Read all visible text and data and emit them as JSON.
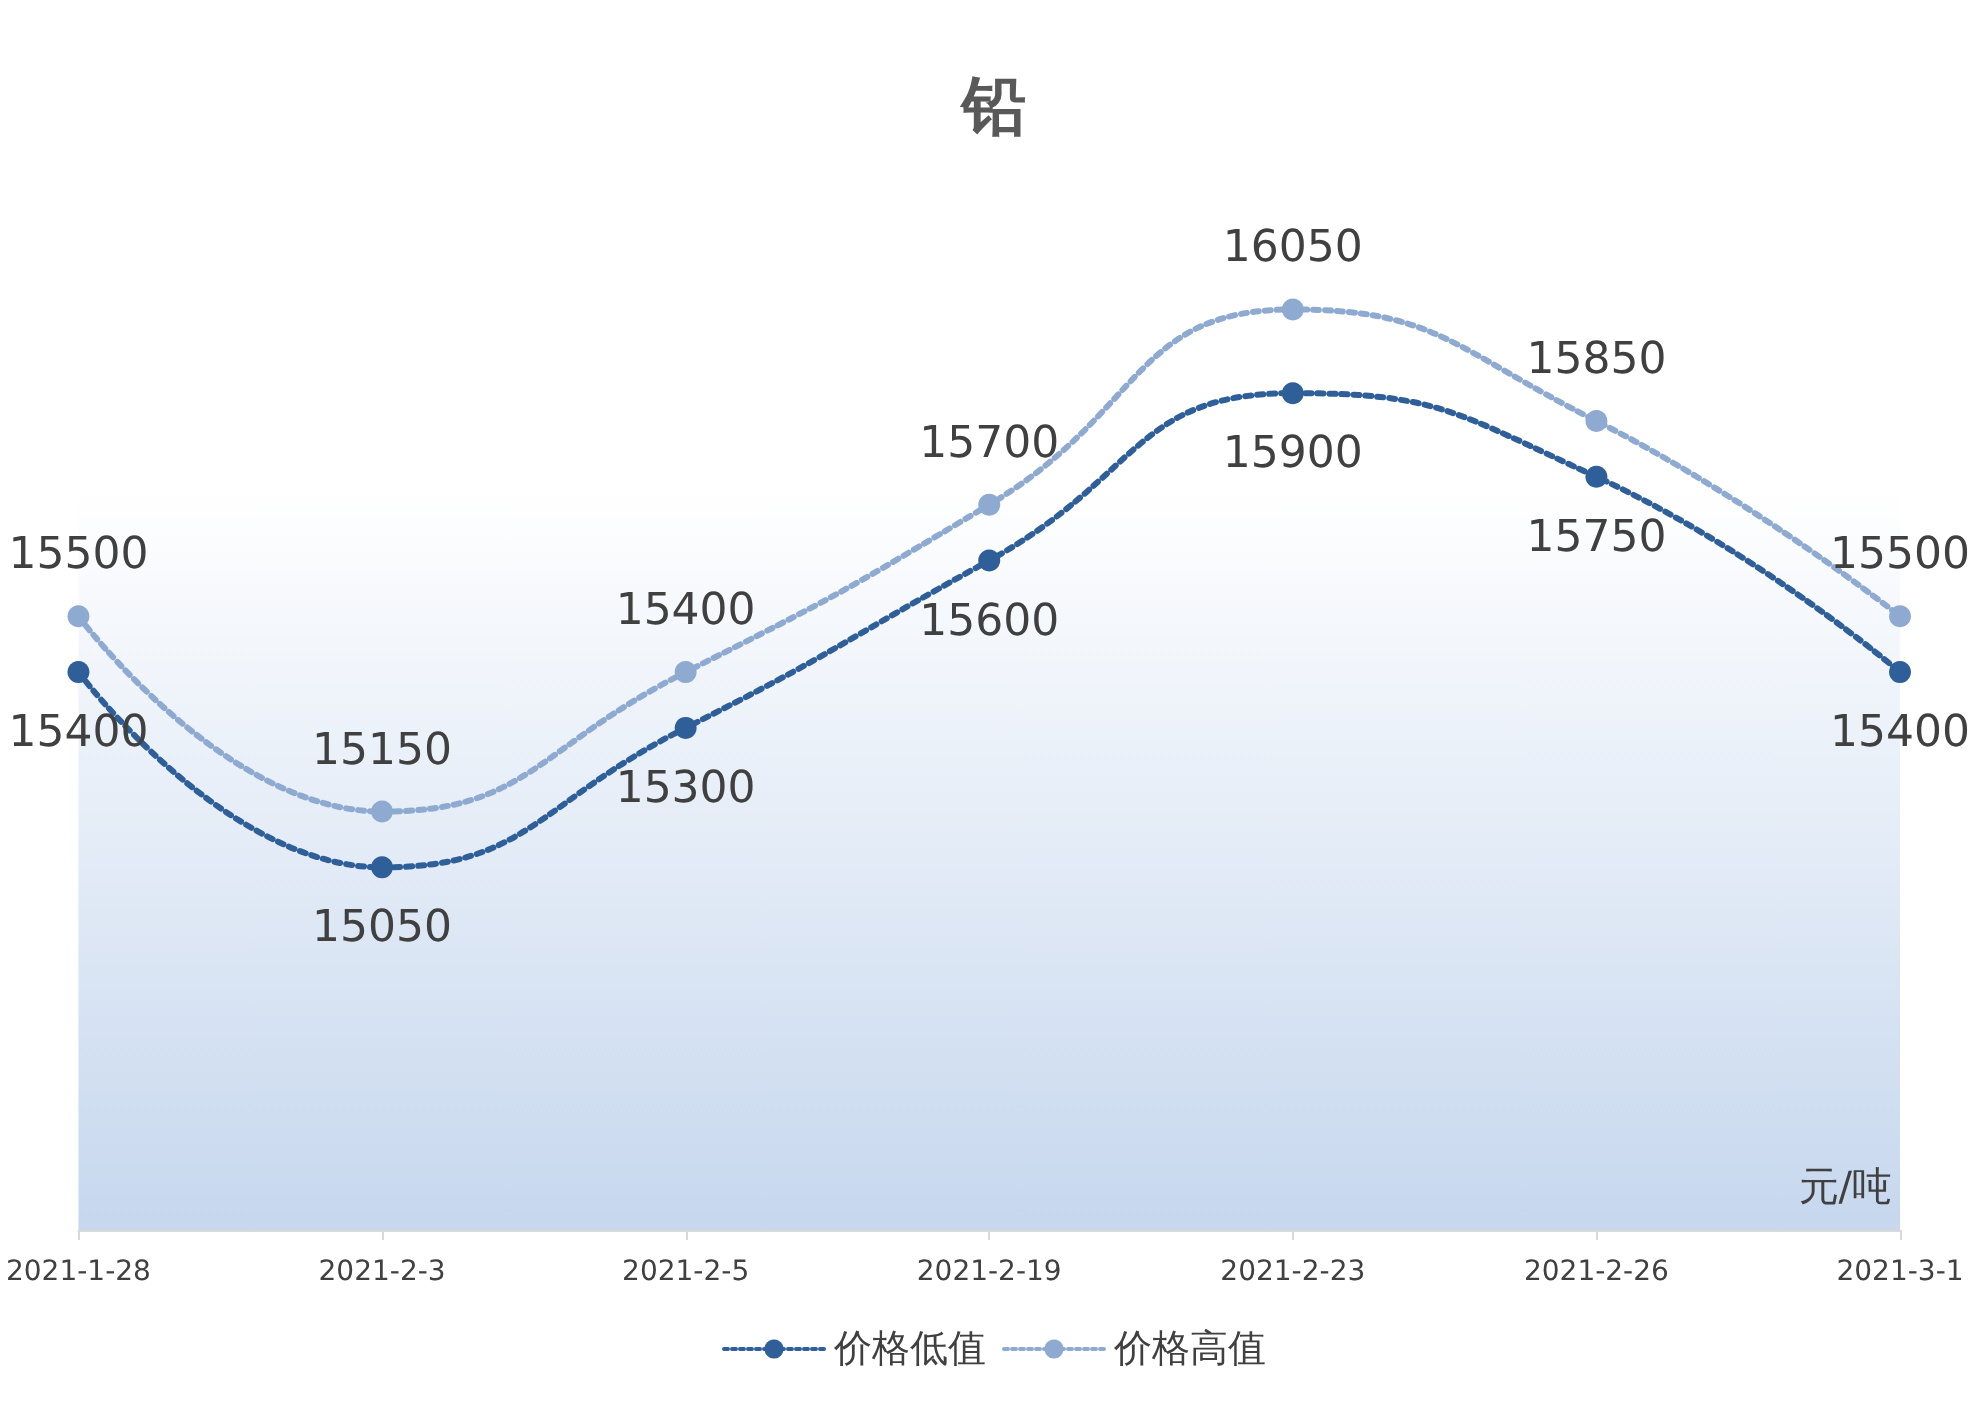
{
  "chart_data": {
    "type": "line",
    "title": "铅",
    "categories": [
      "2021-1-28",
      "2021-2-3",
      "2021-2-5",
      "2021-2-19",
      "2021-2-23",
      "2021-2-26",
      "2021-3-1"
    ],
    "series": [
      {
        "name": "价格低值",
        "color": "#2f5f98",
        "values": [
          15400,
          15050,
          15300,
          15600,
          15900,
          15750,
          15400
        ]
      },
      {
        "name": "价格高值",
        "color": "#8faad1",
        "values": [
          15500,
          15150,
          15400,
          15700,
          16050,
          15850,
          15500
        ]
      }
    ],
    "ylim": [
      14400,
      16300
    ],
    "annotations": [
      "元/吨"
    ],
    "data_labels": true,
    "legend": "bottom",
    "grid": false,
    "tick_labels": "x",
    "marker": "circle",
    "line_style": "dotted"
  }
}
